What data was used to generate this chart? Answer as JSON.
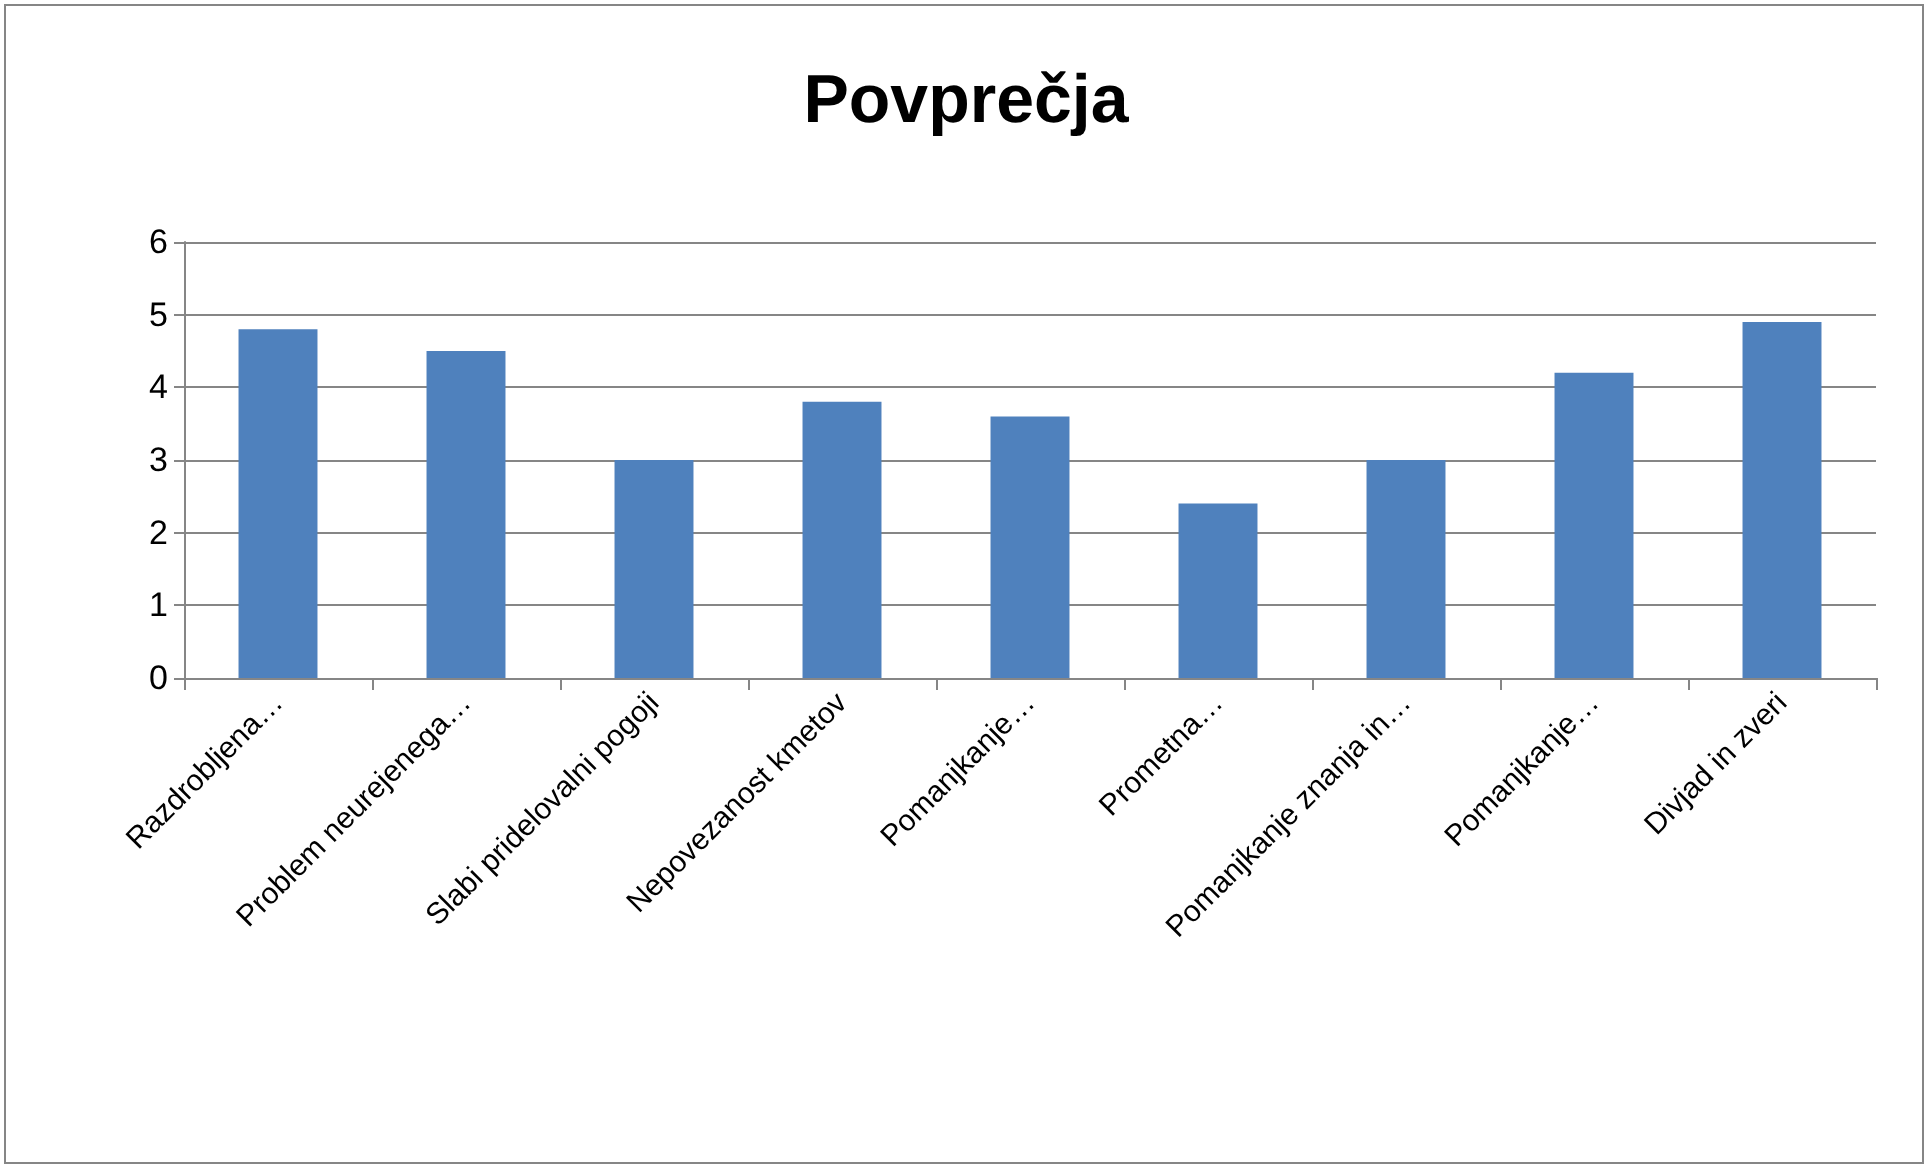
{
  "chart_data": {
    "type": "bar",
    "title": "Povprečja",
    "categories": [
      "Razdrobljena…",
      "Problem neurejenega…",
      "Slabi pridelovalni pogoji",
      "Nepovezanost kmetov",
      "Pomanjkanje…",
      "Prometna…",
      "Pomanjkanje znanja in…",
      "Pomanjkanje…",
      "Divjad in zveri"
    ],
    "values": [
      4.8,
      4.5,
      3.0,
      3.8,
      3.6,
      2.4,
      3.0,
      4.2,
      4.9
    ],
    "color": "#4f81bd",
    "ylim": [
      0,
      6
    ],
    "yticks": [
      0,
      1,
      2,
      3,
      4,
      5,
      6
    ],
    "grid": true
  }
}
